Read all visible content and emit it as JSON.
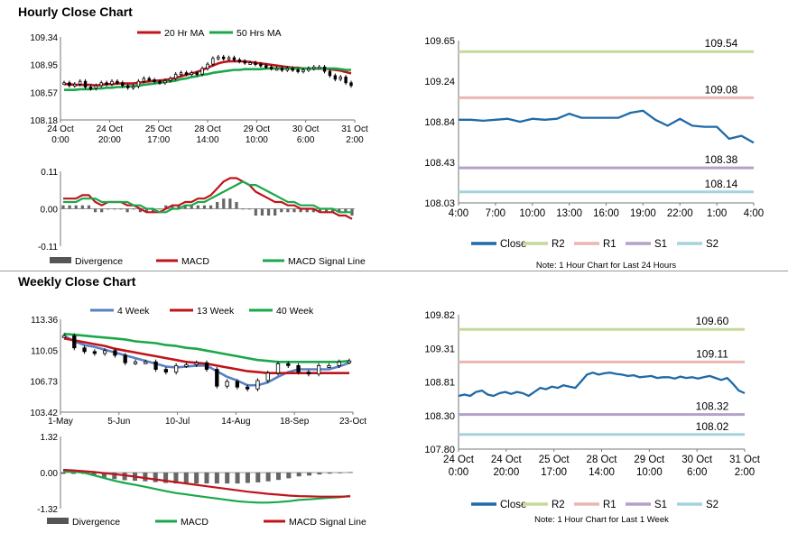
{
  "hourly": {
    "title": "Hourly Close Chart",
    "price_legend": [
      {
        "label": "20 Hr MA",
        "color": "#c0141b"
      },
      {
        "label": "50 Hrs MA",
        "color": "#1aa84a"
      }
    ],
    "macd_legend": [
      {
        "label": "Divergence",
        "color": "#555555",
        "kind": "bar"
      },
      {
        "label": "MACD",
        "color": "#c0141b",
        "kind": "line"
      },
      {
        "label": "MACD Signal Line",
        "color": "#1aa84a",
        "kind": "line"
      }
    ]
  },
  "weekly": {
    "title": "Weekly Close Chart",
    "price_legend": [
      {
        "label": "4 Week",
        "color": "#5a80c4"
      },
      {
        "label": "13 Week",
        "color": "#c0141b"
      },
      {
        "label": "40 Week",
        "color": "#1aa84a"
      }
    ],
    "macd_legend": [
      {
        "label": "Divergence",
        "color": "#555555",
        "kind": "bar"
      },
      {
        "label": "MACD",
        "color": "#1aa84a",
        "kind": "line"
      },
      {
        "label": "MACD Signal Line",
        "color": "#c0141b",
        "kind": "line"
      }
    ]
  },
  "pivot_legend": [
    {
      "label": "Close",
      "color": "#1f6aa8"
    },
    {
      "label": "R2",
      "color": "#c5d99c"
    },
    {
      "label": "R1",
      "color": "#e9b7b5"
    },
    {
      "label": "S1",
      "color": "#b3a2c8"
    },
    {
      "label": "S2",
      "color": "#a5d2de"
    }
  ],
  "notes": {
    "hourly": "Note: 1 Hour Chart for Last 24 Hours",
    "weekly": "Note: 1 Hour Chart for Last 1 Week"
  },
  "chart_data": [
    {
      "id": "hourly-price",
      "type": "candlestick",
      "title": "Hourly Close Chart",
      "ylim": [
        108.18,
        109.34
      ],
      "yticks": [
        "109.34",
        "108.95",
        "108.57",
        "108.18"
      ],
      "xticks": [
        "24 Oct\n0:00",
        "24 Oct\n20:00",
        "25 Oct\n17:00",
        "28 Oct\n14:00",
        "29 Oct\n10:00",
        "30 Oct\n6:00",
        "31 Oct\n2:00"
      ],
      "close": [
        108.7,
        108.66,
        108.68,
        108.72,
        108.64,
        108.62,
        108.66,
        108.7,
        108.68,
        108.72,
        108.7,
        108.66,
        108.63,
        108.65,
        108.72,
        108.76,
        108.74,
        108.72,
        108.7,
        108.73,
        108.76,
        108.82,
        108.84,
        108.82,
        108.84,
        108.82,
        108.9,
        108.96,
        109.04,
        109.06,
        109.04,
        109.05,
        109.02,
        109.0,
        108.98,
        108.98,
        108.96,
        108.94,
        108.92,
        108.9,
        108.9,
        108.88,
        108.9,
        108.88,
        108.86,
        108.88,
        108.9,
        108.92,
        108.92,
        108.86,
        108.8,
        108.75,
        108.78,
        108.7,
        108.66
      ],
      "series": [
        {
          "name": "20 Hr MA",
          "values": [
            108.68,
            108.68,
            108.67,
            108.67,
            108.67,
            108.67,
            108.66,
            108.67,
            108.68,
            108.68,
            108.69,
            108.69,
            108.69,
            108.69,
            108.7,
            108.71,
            108.72,
            108.73,
            108.73,
            108.74,
            108.75,
            108.77,
            108.79,
            108.81,
            108.83,
            108.85,
            108.88,
            108.91,
            108.94,
            108.97,
            108.99,
            109.0,
            109.0,
            109.0,
            109.0,
            108.99,
            108.98,
            108.97,
            108.96,
            108.95,
            108.94,
            108.93,
            108.92,
            108.91,
            108.91,
            108.9,
            108.9,
            108.9,
            108.9,
            108.9,
            108.89,
            108.88,
            108.87,
            108.85,
            108.83
          ]
        },
        {
          "name": "50 Hrs MA",
          "values": [
            108.6,
            108.6,
            108.6,
            108.61,
            108.61,
            108.61,
            108.62,
            108.62,
            108.63,
            108.63,
            108.64,
            108.64,
            108.65,
            108.65,
            108.66,
            108.67,
            108.68,
            108.69,
            108.7,
            108.71,
            108.72,
            108.73,
            108.75,
            108.76,
            108.78,
            108.79,
            108.81,
            108.82,
            108.84,
            108.85,
            108.86,
            108.87,
            108.88,
            108.88,
            108.89,
            108.89,
            108.89,
            108.89,
            108.9,
            108.9,
            108.9,
            108.9,
            108.9,
            108.9,
            108.9,
            108.9,
            108.9,
            108.9,
            108.9,
            108.9,
            108.9,
            108.9,
            108.89,
            108.88,
            108.88
          ]
        }
      ]
    },
    {
      "id": "hourly-macd",
      "type": "line",
      "ylim": [
        -0.11,
        0.11
      ],
      "yticks": [
        "0.11",
        "0.00",
        "-0.11"
      ],
      "series": [
        {
          "name": "MACD",
          "values": [
            0.03,
            0.03,
            0.03,
            0.04,
            0.04,
            0.02,
            0.01,
            0.02,
            0.02,
            0.02,
            0.01,
            0.01,
            0.0,
            -0.01,
            -0.01,
            -0.01,
            0.0,
            0.01,
            0.01,
            0.02,
            0.02,
            0.03,
            0.03,
            0.04,
            0.06,
            0.08,
            0.09,
            0.09,
            0.08,
            0.07,
            0.05,
            0.04,
            0.03,
            0.02,
            0.02,
            0.01,
            0.01,
            0.0,
            0.0,
            0.0,
            -0.01,
            -0.01,
            -0.01,
            -0.02,
            -0.02,
            -0.03
          ]
        },
        {
          "name": "MACD Signal Line",
          "values": [
            0.02,
            0.02,
            0.02,
            0.03,
            0.03,
            0.03,
            0.02,
            0.02,
            0.02,
            0.02,
            0.02,
            0.01,
            0.01,
            0.0,
            0.0,
            -0.01,
            -0.01,
            0.0,
            0.0,
            0.01,
            0.01,
            0.02,
            0.02,
            0.03,
            0.04,
            0.05,
            0.06,
            0.07,
            0.08,
            0.07,
            0.07,
            0.06,
            0.05,
            0.04,
            0.03,
            0.02,
            0.02,
            0.01,
            0.01,
            0.01,
            0.0,
            0.0,
            0.0,
            -0.01,
            -0.01,
            -0.01
          ]
        },
        {
          "name": "Divergence",
          "values": [
            0.01,
            0.01,
            0.01,
            0.01,
            0.01,
            -0.01,
            -0.01,
            0.0,
            0.0,
            0.0,
            -0.01,
            0.0,
            -0.01,
            -0.01,
            -0.01,
            0.0,
            0.01,
            0.01,
            0.01,
            0.01,
            0.01,
            0.01,
            0.01,
            0.01,
            0.02,
            0.03,
            0.03,
            0.02,
            0.0,
            0.0,
            -0.02,
            -0.02,
            -0.02,
            -0.02,
            -0.01,
            -0.01,
            -0.01,
            -0.01,
            -0.01,
            -0.01,
            -0.01,
            -0.01,
            -0.01,
            -0.01,
            -0.01,
            -0.02
          ]
        }
      ]
    },
    {
      "id": "hourly-pivot",
      "type": "line",
      "ylim": [
        108.03,
        109.65
      ],
      "yticks": [
        "109.65",
        "109.24",
        "108.84",
        "108.43",
        "108.03"
      ],
      "xticks": [
        "4:00",
        "7:00",
        "10:00",
        "13:00",
        "16:00",
        "19:00",
        "22:00",
        "1:00",
        "4:00"
      ],
      "close": [
        108.86,
        108.86,
        108.85,
        108.86,
        108.87,
        108.84,
        108.87,
        108.86,
        108.87,
        108.92,
        108.88,
        108.88,
        108.88,
        108.88,
        108.93,
        108.95,
        108.86,
        108.8,
        108.87,
        108.8,
        108.79,
        108.79,
        108.67,
        108.7,
        108.63
      ],
      "levels": [
        {
          "name": "R2",
          "value": 109.54,
          "label": "109.54"
        },
        {
          "name": "R1",
          "value": 109.08,
          "label": "109.08"
        },
        {
          "name": "S1",
          "value": 108.38,
          "label": "108.38"
        },
        {
          "name": "S2",
          "value": 108.14,
          "label": "108.14"
        }
      ]
    },
    {
      "id": "weekly-price",
      "type": "candlestick",
      "title": "Weekly Close Chart",
      "ylim": [
        103.42,
        113.36
      ],
      "yticks": [
        "113.36",
        "110.05",
        "106.73",
        "103.42"
      ],
      "xticks": [
        "1-May",
        "5-Jun",
        "10-Jul",
        "14-Aug",
        "18-Sep",
        "23-Oct"
      ],
      "close": [
        111.6,
        110.3,
        109.9,
        109.7,
        110.0,
        109.5,
        108.7,
        108.8,
        108.8,
        108.0,
        107.7,
        108.4,
        108.5,
        108.7,
        108.0,
        106.2,
        106.7,
        106.1,
        105.9,
        106.8,
        107.6,
        108.6,
        108.4,
        107.7,
        107.5,
        108.4,
        108.4,
        108.8,
        108.9
      ],
      "series": [
        {
          "name": "4 Week",
          "values": [
            111.6,
            111.0,
            110.6,
            110.4,
            110.1,
            109.8,
            109.5,
            109.2,
            108.9,
            108.6,
            108.3,
            108.2,
            108.3,
            108.4,
            108.4,
            107.8,
            107.2,
            106.8,
            106.3,
            106.3,
            106.6,
            107.2,
            107.7,
            108.0,
            108.0,
            108.0,
            108.0,
            108.3,
            108.7
          ]
        },
        {
          "name": "13 Week",
          "values": [
            111.3,
            111.1,
            110.9,
            110.7,
            110.5,
            110.2,
            110.0,
            109.8,
            109.6,
            109.4,
            109.2,
            109.0,
            108.8,
            108.7,
            108.6,
            108.4,
            108.2,
            108.0,
            107.8,
            107.7,
            107.6,
            107.6,
            107.6,
            107.6,
            107.6,
            107.6,
            107.6,
            107.6,
            107.6
          ]
        },
        {
          "name": "40 Week",
          "values": [
            111.8,
            111.7,
            111.6,
            111.5,
            111.4,
            111.3,
            111.2,
            111.0,
            110.9,
            110.8,
            110.6,
            110.5,
            110.3,
            110.2,
            110.0,
            109.8,
            109.6,
            109.4,
            109.2,
            109.0,
            108.9,
            108.8,
            108.8,
            108.8,
            108.8,
            108.8,
            108.8,
            108.8,
            108.9
          ]
        }
      ]
    },
    {
      "id": "weekly-macd",
      "type": "line",
      "ylim": [
        -1.32,
        1.32
      ],
      "yticks": [
        "1.32",
        "0.00",
        "-1.32"
      ],
      "series": [
        {
          "name": "MACD",
          "values": [
            0.05,
            0.03,
            0.0,
            -0.1,
            -0.2,
            -0.3,
            -0.38,
            -0.45,
            -0.52,
            -0.6,
            -0.68,
            -0.75,
            -0.8,
            -0.85,
            -0.9,
            -0.95,
            -1.0,
            -1.05,
            -1.08,
            -1.1,
            -1.1,
            -1.08,
            -1.05,
            -1.0,
            -0.98,
            -0.95,
            -0.92,
            -0.9,
            -0.85
          ]
        },
        {
          "name": "MACD Signal Line",
          "values": [
            0.1,
            0.08,
            0.05,
            0.02,
            -0.02,
            -0.06,
            -0.1,
            -0.15,
            -0.2,
            -0.25,
            -0.3,
            -0.35,
            -0.4,
            -0.45,
            -0.5,
            -0.55,
            -0.6,
            -0.65,
            -0.7,
            -0.74,
            -0.78,
            -0.81,
            -0.84,
            -0.86,
            -0.87,
            -0.88,
            -0.88,
            -0.88,
            -0.87
          ]
        },
        {
          "name": "Divergence",
          "values": [
            -0.05,
            -0.05,
            -0.05,
            -0.12,
            -0.18,
            -0.24,
            -0.28,
            -0.3,
            -0.32,
            -0.35,
            -0.38,
            -0.4,
            -0.4,
            -0.4,
            -0.4,
            -0.4,
            -0.4,
            -0.4,
            -0.38,
            -0.36,
            -0.32,
            -0.27,
            -0.21,
            -0.14,
            -0.11,
            -0.07,
            -0.04,
            -0.02,
            0.02
          ]
        }
      ]
    },
    {
      "id": "weekly-pivot",
      "type": "line",
      "ylim": [
        107.8,
        109.82
      ],
      "yticks": [
        "109.82",
        "109.31",
        "108.81",
        "108.30",
        "107.80"
      ],
      "xticks": [
        "24 Oct\n0:00",
        "24 Oct\n20:00",
        "25 Oct\n17:00",
        "28 Oct\n14:00",
        "29 Oct\n10:00",
        "30 Oct\n6:00",
        "31 Oct\n2:00"
      ],
      "close": [
        108.6,
        108.62,
        108.6,
        108.66,
        108.68,
        108.62,
        108.6,
        108.64,
        108.66,
        108.63,
        108.66,
        108.64,
        108.6,
        108.66,
        108.72,
        108.7,
        108.74,
        108.72,
        108.76,
        108.74,
        108.72,
        108.82,
        108.92,
        108.95,
        108.92,
        108.94,
        108.95,
        108.93,
        108.92,
        108.9,
        108.91,
        108.88,
        108.89,
        108.9,
        108.87,
        108.88,
        108.88,
        108.86,
        108.89,
        108.87,
        108.88,
        108.86,
        108.88,
        108.9,
        108.87,
        108.84,
        108.87,
        108.78,
        108.68,
        108.64
      ],
      "levels": [
        {
          "name": "R2",
          "value": 109.6,
          "label": "109.60"
        },
        {
          "name": "R1",
          "value": 109.11,
          "label": "109.11"
        },
        {
          "name": "S1",
          "value": 108.32,
          "label": "108.32"
        },
        {
          "name": "S2",
          "value": 108.02,
          "label": "108.02"
        }
      ]
    }
  ]
}
